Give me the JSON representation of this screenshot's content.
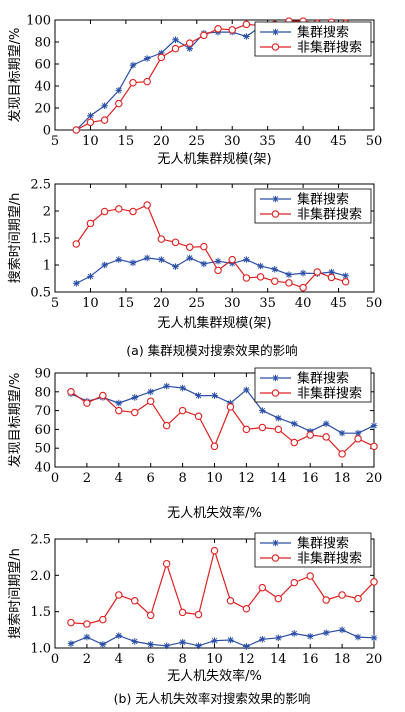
{
  "colors": {
    "cluster": "#2b4fa8",
    "noncluster": "#e02020"
  },
  "captions": {
    "a": "(a) 集群规模对搜索效果的影响",
    "b": "(b) 无人机失效率对搜索效果的影响"
  },
  "chart_data": [
    {
      "type": "line",
      "xlabel": "无人机集群规模(架)",
      "ylabel": "发现目标期望/%",
      "xlim": [
        5,
        50
      ],
      "ylim": [
        0,
        100
      ],
      "xticks": [
        5,
        10,
        15,
        20,
        25,
        30,
        35,
        40,
        45,
        50
      ],
      "yticks": [
        0,
        20,
        40,
        60,
        80,
        100
      ],
      "legend": "top-right",
      "x": [
        8,
        10,
        12,
        14,
        16,
        18,
        20,
        22,
        24,
        26,
        28,
        30,
        32,
        34,
        36,
        38,
        40,
        42,
        44,
        46
      ],
      "series": [
        {
          "name": "集群搜索",
          "marker": "star",
          "values": [
            0,
            13,
            22,
            36,
            59,
            65,
            70,
            82,
            74,
            88,
            89,
            89,
            85,
            94,
            95,
            97,
            98,
            97,
            97,
            97
          ]
        },
        {
          "name": "非集群搜索",
          "marker": "circle",
          "values": [
            0,
            7,
            9,
            24,
            43,
            44,
            66,
            74,
            79,
            86,
            92,
            91,
            96,
            95,
            96,
            99,
            99,
            97,
            98,
            97
          ]
        }
      ]
    },
    {
      "type": "line",
      "xlabel": "无人机集群规模(架)",
      "ylabel": "搜索时间期望/h",
      "xlim": [
        5,
        50
      ],
      "ylim": [
        0.5,
        2.5
      ],
      "xticks": [
        5,
        10,
        15,
        20,
        25,
        30,
        35,
        40,
        45,
        50
      ],
      "yticks": [
        0.5,
        1,
        1.5,
        2,
        2.5
      ],
      "ytick_labels": [
        "0.5",
        "1",
        "1.5",
        "2",
        "2.5"
      ],
      "legend": "top-right",
      "x": [
        8,
        10,
        12,
        14,
        16,
        18,
        20,
        22,
        24,
        26,
        28,
        30,
        32,
        34,
        36,
        38,
        40,
        42,
        44,
        46
      ],
      "series": [
        {
          "name": "集群搜索",
          "marker": "star",
          "values": [
            0.66,
            0.79,
            1.0,
            1.1,
            1.04,
            1.13,
            1.1,
            0.97,
            1.13,
            1.02,
            1.07,
            1.03,
            1.1,
            0.98,
            0.92,
            0.82,
            0.85,
            0.84,
            0.87,
            0.8
          ]
        },
        {
          "name": "非集群搜索",
          "marker": "circle",
          "values": [
            1.39,
            1.77,
            1.99,
            2.04,
            1.99,
            2.11,
            1.48,
            1.42,
            1.33,
            1.34,
            0.9,
            1.1,
            0.76,
            0.78,
            0.7,
            0.67,
            0.58,
            0.87,
            0.77,
            0.69
          ]
        }
      ]
    },
    {
      "type": "line",
      "xlabel": "无人机失效率/%",
      "ylabel": "发现目标期望/%",
      "xlim": [
        0,
        20
      ],
      "ylim": [
        40,
        90
      ],
      "xticks": [
        0,
        2,
        4,
        6,
        8,
        10,
        12,
        14,
        16,
        18,
        20
      ],
      "yticks": [
        40,
        50,
        60,
        70,
        80,
        90
      ],
      "legend": "top-right",
      "x": [
        1,
        2,
        3,
        4,
        5,
        6,
        7,
        8,
        9,
        10,
        11,
        12,
        13,
        14,
        15,
        16,
        17,
        18,
        19,
        20
      ],
      "series": [
        {
          "name": "集群搜索",
          "marker": "star",
          "values": [
            79,
            75,
            77,
            74,
            77,
            80,
            83,
            82,
            78,
            78,
            74,
            81,
            70,
            66,
            63,
            59,
            63,
            58,
            58,
            62
          ]
        },
        {
          "name": "非集群搜索",
          "marker": "circle",
          "values": [
            80,
            74,
            78,
            70,
            69,
            75,
            62,
            70,
            67,
            51,
            72,
            60,
            61,
            60,
            53,
            57,
            56,
            47,
            55,
            51
          ]
        }
      ]
    },
    {
      "type": "line",
      "xlabel": "无人机失效率/%",
      "ylabel": "搜索时间期望/h",
      "xlim": [
        0,
        20
      ],
      "ylim": [
        1.0,
        2.5
      ],
      "xticks": [
        0,
        2,
        4,
        6,
        8,
        10,
        12,
        14,
        16,
        18,
        20
      ],
      "yticks": [
        1.0,
        1.5,
        2.0,
        2.5
      ],
      "ytick_labels": [
        "1.0",
        "1.5",
        "2.0",
        "2.5"
      ],
      "legend": "top-right",
      "x": [
        1,
        2,
        3,
        4,
        5,
        6,
        7,
        8,
        9,
        10,
        11,
        12,
        13,
        14,
        15,
        16,
        17,
        18,
        19,
        20
      ],
      "series": [
        {
          "name": "集群搜索",
          "marker": "star",
          "values": [
            1.06,
            1.15,
            1.05,
            1.17,
            1.09,
            1.05,
            1.03,
            1.08,
            1.03,
            1.1,
            1.11,
            1.02,
            1.12,
            1.14,
            1.2,
            1.16,
            1.21,
            1.25,
            1.15,
            1.14
          ]
        },
        {
          "name": "非集群搜索",
          "marker": "circle",
          "values": [
            1.35,
            1.33,
            1.39,
            1.73,
            1.65,
            1.45,
            2.16,
            1.49,
            1.46,
            2.34,
            1.65,
            1.54,
            1.83,
            1.68,
            1.9,
            1.99,
            1.66,
            1.73,
            1.68,
            1.91
          ]
        }
      ]
    }
  ]
}
